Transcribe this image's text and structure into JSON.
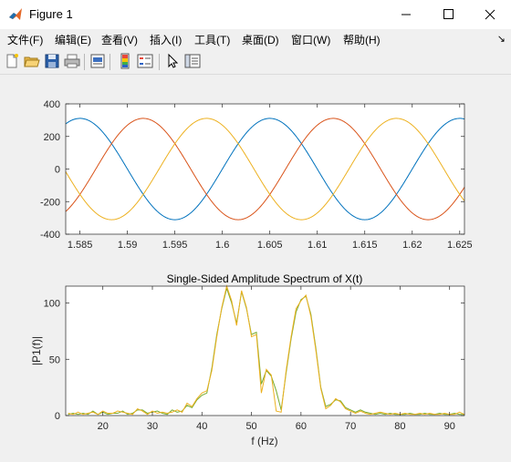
{
  "window": {
    "title": "Figure 1"
  },
  "menu": [
    "文件(F)",
    "编辑(E)",
    "查看(V)",
    "插入(I)",
    "工具(T)",
    "桌面(D)",
    "窗口(W)",
    "帮助(H)"
  ],
  "toolbar_icons": [
    "new-figure-icon",
    "open-file-icon",
    "save-icon",
    "print-icon",
    "print-preview-icon",
    "colorbar-icon",
    "legend-icon",
    "edit-plot-arrow-icon",
    "property-editor-icon"
  ],
  "chart_data": [
    {
      "type": "line",
      "title": "",
      "xlabel": "",
      "ylabel": "",
      "xlim": [
        1.5835,
        1.6255
      ],
      "ylim": [
        -400,
        400
      ],
      "x_ticks": [
        "1.585",
        "1.59",
        "1.595",
        "1.6",
        "1.605",
        "1.61",
        "1.615",
        "1.62",
        "1.625"
      ],
      "y_ticks": [
        "400",
        "200",
        "0",
        "-200",
        "-400"
      ],
      "series": [
        {
          "color": "#0072bd",
          "amplitude": 311,
          "frequency_hz": 50,
          "phase_deg": 0
        },
        {
          "color": "#d95319",
          "amplitude": 311,
          "frequency_hz": 50,
          "phase_deg": -120
        },
        {
          "color": "#edb120",
          "amplitude": 311,
          "frequency_hz": 50,
          "phase_deg": 120
        }
      ]
    },
    {
      "type": "line",
      "title": "Single-Sided Amplitude Spectrum of X(t)",
      "xlabel": "f (Hz)",
      "ylabel": "|P1(f)|",
      "xlim": [
        12.5,
        93
      ],
      "ylim": [
        0,
        115
      ],
      "x_ticks": [
        "20",
        "30",
        "40",
        "50",
        "60",
        "70",
        "80",
        "90"
      ],
      "y_ticks": [
        "100",
        "50",
        "0"
      ],
      "series": [
        {
          "color": "#77ac30",
          "x": [
            13,
            14,
            15,
            16,
            17,
            18,
            19,
            20,
            21,
            22,
            23,
            24,
            25,
            26,
            27,
            28,
            29,
            30,
            31,
            32,
            33,
            34,
            35,
            36,
            37,
            38,
            39,
            40,
            41,
            42,
            43,
            44,
            45,
            46,
            47,
            48,
            49,
            50,
            51,
            52,
            53,
            54,
            55,
            56,
            57,
            58,
            59,
            60,
            61,
            62,
            63,
            64,
            65,
            66,
            67,
            68,
            69,
            70,
            71,
            72,
            73,
            74,
            75,
            76,
            77,
            78,
            79,
            80,
            81,
            82,
            83,
            84,
            85,
            86,
            87,
            88,
            89,
            90,
            91,
            92,
            93
          ],
          "y": [
            1,
            2,
            1,
            2,
            1,
            4,
            1,
            3,
            1,
            2,
            2,
            4,
            1,
            2,
            5,
            5,
            2,
            3,
            4,
            2,
            1,
            5,
            3,
            4,
            9,
            7,
            14,
            18,
            20,
            42,
            72,
            95,
            113,
            100,
            82,
            110,
            95,
            72,
            74,
            28,
            40,
            35,
            22,
            5,
            38,
            68,
            92,
            103,
            106,
            90,
            60,
            25,
            8,
            10,
            14,
            13,
            7,
            5,
            3,
            5,
            3,
            2,
            1,
            2,
            1,
            2,
            1,
            1,
            1,
            2,
            1,
            1,
            2,
            1,
            1,
            2,
            1,
            1,
            2,
            1,
            1
          ]
        },
        {
          "color": "#edb120",
          "x": [
            13,
            14,
            15,
            16,
            17,
            18,
            19,
            20,
            21,
            22,
            23,
            24,
            25,
            26,
            27,
            28,
            29,
            30,
            31,
            32,
            33,
            34,
            35,
            36,
            37,
            38,
            39,
            40,
            41,
            42,
            43,
            44,
            45,
            46,
            47,
            48,
            49,
            50,
            51,
            52,
            53,
            54,
            55,
            56,
            57,
            58,
            59,
            60,
            61,
            62,
            63,
            64,
            65,
            66,
            67,
            68,
            69,
            70,
            71,
            72,
            73,
            74,
            75,
            76,
            77,
            78,
            79,
            80,
            81,
            82,
            83,
            84,
            85,
            86,
            87,
            88,
            89,
            90,
            91,
            92,
            93
          ],
          "y": [
            2,
            1,
            3,
            1,
            2,
            3,
            1,
            4,
            2,
            2,
            4,
            3,
            2,
            1,
            6,
            4,
            1,
            4,
            2,
            3,
            2,
            3,
            5,
            3,
            11,
            8,
            15,
            20,
            22,
            40,
            70,
            96,
            115,
            102,
            80,
            111,
            96,
            70,
            72,
            20,
            41,
            36,
            4,
            3,
            40,
            70,
            95,
            102,
            107,
            88,
            58,
            24,
            6,
            9,
            15,
            12,
            6,
            4,
            2,
            4,
            2,
            1,
            2,
            3,
            2,
            1,
            2,
            1,
            2,
            1,
            1,
            2,
            1,
            2,
            1,
            1,
            2,
            1,
            1,
            3,
            1
          ]
        }
      ]
    }
  ]
}
